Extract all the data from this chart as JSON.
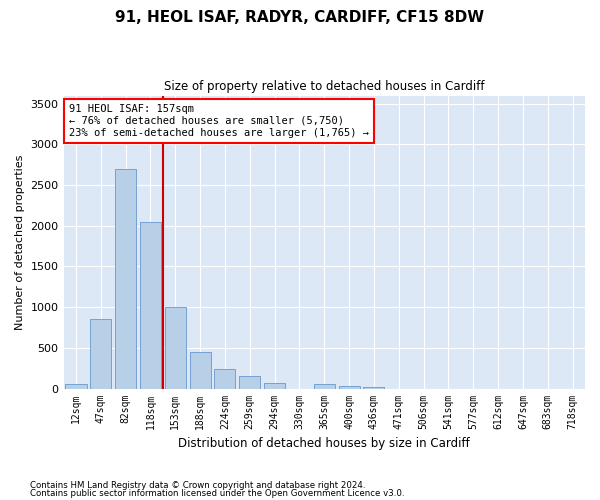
{
  "title": "91, HEOL ISAF, RADYR, CARDIFF, CF15 8DW",
  "subtitle": "Size of property relative to detached houses in Cardiff",
  "xlabel": "Distribution of detached houses by size in Cardiff",
  "ylabel": "Number of detached properties",
  "bar_color": "#b8cfe8",
  "bar_edge_color": "#6699cc",
  "background_color": "#dce8f5",
  "categories": [
    "12sqm",
    "47sqm",
    "82sqm",
    "118sqm",
    "153sqm",
    "188sqm",
    "224sqm",
    "259sqm",
    "294sqm",
    "330sqm",
    "365sqm",
    "400sqm",
    "436sqm",
    "471sqm",
    "506sqm",
    "541sqm",
    "577sqm",
    "612sqm",
    "647sqm",
    "683sqm",
    "718sqm"
  ],
  "values": [
    60,
    850,
    2700,
    2050,
    1000,
    450,
    245,
    155,
    65,
    0,
    55,
    35,
    20,
    0,
    0,
    0,
    0,
    0,
    0,
    0,
    0
  ],
  "vline_color": "#cc0000",
  "vline_pos": 3.5,
  "ylim": [
    0,
    3600
  ],
  "yticks": [
    0,
    500,
    1000,
    1500,
    2000,
    2500,
    3000,
    3500
  ],
  "annotation_title": "91 HEOL ISAF: 157sqm",
  "annotation_line1": "← 76% of detached houses are smaller (5,750)",
  "annotation_line2": "23% of semi-detached houses are larger (1,765) →",
  "footnote1": "Contains HM Land Registry data © Crown copyright and database right 2024.",
  "footnote2": "Contains public sector information licensed under the Open Government Licence v3.0."
}
